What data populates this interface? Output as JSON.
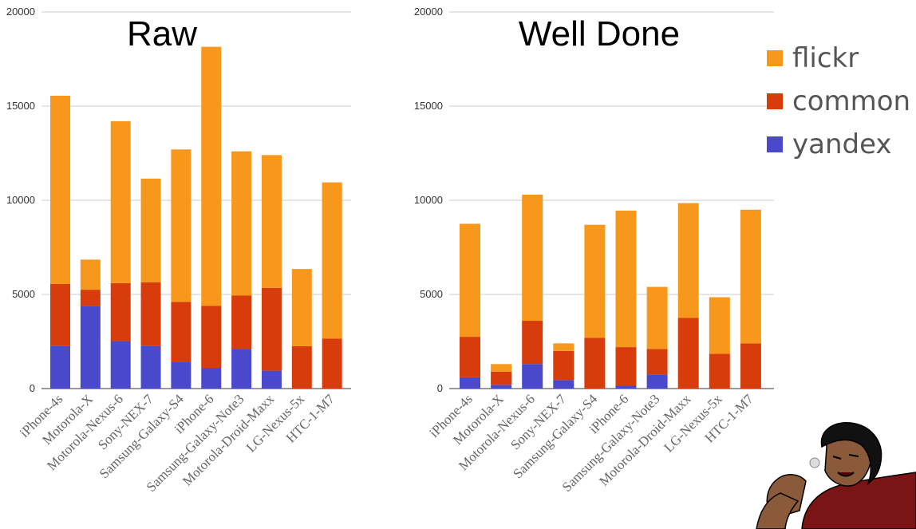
{
  "chart_data": [
    {
      "type": "bar",
      "stacked": true,
      "title": "Raw",
      "xlabel": "",
      "ylabel": "",
      "ylim": [
        0,
        20000
      ],
      "yticks": [
        "0",
        "5000",
        "10000",
        "15000",
        "20000"
      ],
      "categories": [
        "iPhone-4s",
        "Motorola-X",
        "Motorola-Nexus-6",
        "Sony-NEX-7",
        "Samsung-Galaxy-S4",
        "iPhone-6",
        "Samsung-Galaxy-Note3",
        "Motorola-Droid-Maxx",
        "LG-Nexus-5x",
        "HTC-1-M7"
      ],
      "series": [
        {
          "name": "yandex",
          "values": [
            2250,
            4400,
            2500,
            2250,
            1400,
            1100,
            2100,
            950,
            0,
            0
          ]
        },
        {
          "name": "common",
          "values": [
            3300,
            850,
            3100,
            3400,
            3200,
            3300,
            2850,
            4400,
            2250,
            2650
          ]
        },
        {
          "name": "flickr",
          "values": [
            10000,
            1600,
            8600,
            5500,
            8100,
            13750,
            7650,
            7050,
            4100,
            8300
          ]
        }
      ]
    },
    {
      "type": "bar",
      "stacked": true,
      "title": "Well Done",
      "xlabel": "",
      "ylabel": "",
      "ylim": [
        0,
        20000
      ],
      "yticks": [
        "0",
        "5000",
        "10000",
        "15000",
        "20000"
      ],
      "categories": [
        "iPhone-4s",
        "Motorola-X",
        "Motorola-Nexus-6",
        "Sony-NEX-7",
        "Samsung-Galaxy-S4",
        "iPhone-6",
        "Samsung-Galaxy-Note3",
        "Motorola-Droid-Maxx",
        "LG-Nexus-5x",
        "HTC-1-M7"
      ],
      "series": [
        {
          "name": "yandex",
          "values": [
            600,
            200,
            1300,
            450,
            0,
            150,
            750,
            0,
            0,
            0
          ]
        },
        {
          "name": "common",
          "values": [
            2150,
            700,
            2300,
            1550,
            2700,
            2050,
            1350,
            3750,
            1850,
            2400
          ]
        },
        {
          "name": "flickr",
          "values": [
            6000,
            400,
            6700,
            400,
            6000,
            7250,
            3300,
            6100,
            3000,
            7100
          ]
        }
      ]
    }
  ],
  "legend": {
    "position": "right",
    "entries": [
      {
        "name": "flickr",
        "color": "#f7981d"
      },
      {
        "name": "common",
        "color": "#d83c0a"
      },
      {
        "name": "yandex",
        "color": "#4a48cb"
      }
    ]
  },
  "colors": {
    "yandex": "#4a48cb",
    "common": "#d83c0a",
    "flickr": "#f7981d",
    "grid": "#cccccc"
  },
  "decoration": {
    "image": "meme-face"
  }
}
